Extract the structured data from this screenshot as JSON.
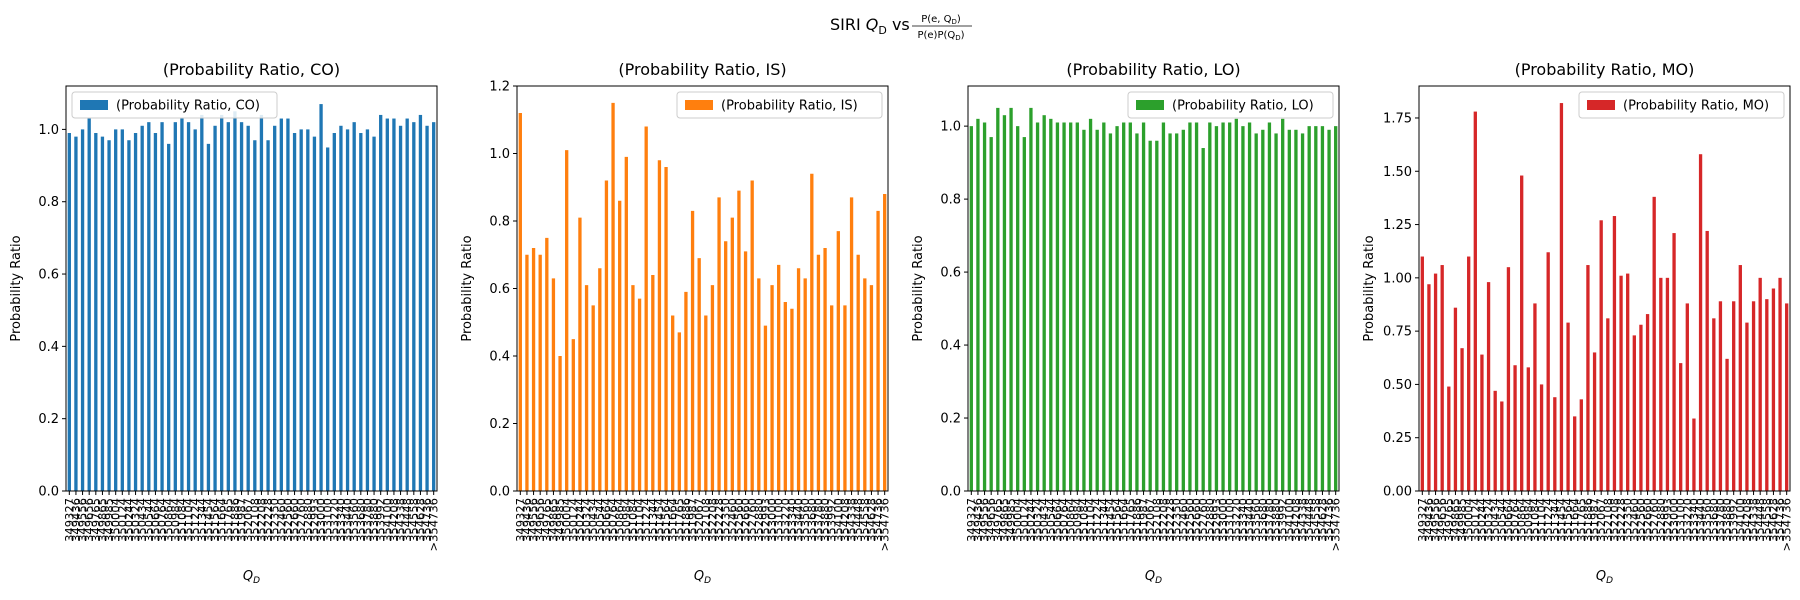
{
  "figure": {
    "suptitle_prefix": "SIRI ",
    "suptitle_var": "Q",
    "suptitle_sub": "D",
    "suptitle_vs": " vs ",
    "frac_num": "P(e, Q",
    "frac_num_sub": "D",
    "frac_num_close": ")",
    "frac_den": "P(e)P(Q",
    "frac_den_sub": "D",
    "frac_den_close": ")"
  },
  "chart_data": [
    {
      "type": "bar",
      "title": "(Probability Ratio, CO)",
      "legend_label": "(Probability Ratio, CO)",
      "legend_position": "upper-left",
      "color": "#1f77b4",
      "xlabel_var": "Q",
      "xlabel_sub": "D",
      "ylabel": "Probability Ratio",
      "ylim": [
        0,
        1.12
      ],
      "yticks": [
        0.0,
        0.2,
        0.4,
        0.6,
        0.8,
        1.0
      ],
      "ytick_labels": [
        "0.0",
        "0.2",
        "0.4",
        "0.6",
        "0.8",
        "1.0"
      ],
      "categories": [
        "349327",
        "349436",
        "349556",
        "349656",
        "349765",
        "349865",
        "349985",
        "350004",
        "350124",
        "350244",
        "350324",
        "350434",
        "350544",
        "350664",
        "350764",
        "350864",
        "350984",
        "351084",
        "351104",
        "351224",
        "351344",
        "351454",
        "351564",
        "351664",
        "351765",
        "351886",
        "351987",
        "352067",
        "352108",
        "352208",
        "352228",
        "352350",
        "352460",
        "352560",
        "352660",
        "352760",
        "352880",
        "352993",
        "353000",
        "353100",
        "353220",
        "353340",
        "353440",
        "353560",
        "353680",
        "353780",
        "353880",
        "353992",
        "354100",
        "354208",
        "354338",
        "354448",
        "354558",
        "354628",
        "354736",
        ">354736"
      ],
      "tick_labels": [
        "349327",
        "349436",
        "349556",
        "349656",
        "349765",
        "349865",
        "349985",
        "350004",
        "350124",
        "350244",
        "350324",
        "350434",
        "350544",
        "350664",
        "350764",
        "350864",
        "350984",
        "351084",
        "351104",
        "351224",
        "351344",
        "351454",
        "351564",
        "351664",
        "351765",
        "351886",
        "351987",
        "352067",
        "352108",
        "352208",
        "352228",
        "352350",
        "352460",
        "352560",
        "352660",
        "352760",
        "352880",
        "352993",
        "353000",
        "353100",
        "353220",
        "353340",
        "353440",
        "353560",
        "353680",
        "353780",
        "353880",
        "353992",
        "354100",
        "354208",
        "354338",
        "354448",
        "354558",
        "354628",
        "354736",
        ">354736"
      ],
      "values": [
        0.99,
        0.98,
        1.0,
        1.03,
        0.99,
        0.98,
        0.97,
        1.0,
        1.0,
        0.97,
        0.99,
        1.01,
        1.02,
        0.99,
        1.02,
        0.96,
        1.02,
        1.03,
        1.02,
        1.0,
        1.04,
        0.96,
        1.01,
        1.04,
        1.02,
        1.05,
        1.02,
        1.01,
        0.97,
        1.04,
        0.97,
        1.01,
        1.03,
        1.03,
        0.99,
        1.0,
        1.0,
        0.98,
        1.07,
        0.95,
        0.99,
        1.01,
        1.0,
        1.02,
        0.99,
        1.0,
        0.98,
        1.04,
        1.03,
        1.03,
        1.01,
        1.03,
        1.02,
        1.04,
        1.01,
        1.02
      ]
    },
    {
      "type": "bar",
      "title": "(Probability Ratio, IS)",
      "legend_label": "(Probability Ratio, IS)",
      "legend_position": "upper-right",
      "color": "#ff7f0e",
      "xlabel_var": "Q",
      "xlabel_sub": "D",
      "ylabel": "Probability Ratio",
      "ylim": [
        0,
        1.2
      ],
      "yticks": [
        0.0,
        0.2,
        0.4,
        0.6,
        0.8,
        1.0,
        1.2
      ],
      "ytick_labels": [
        "0.0",
        "0.2",
        "0.4",
        "0.6",
        "0.8",
        "1.0",
        "1.2"
      ],
      "categories": [
        "349327",
        "349436",
        "349556",
        "349656",
        "349765",
        "349865",
        "349985",
        "350004",
        "350124",
        "350244",
        "350324",
        "350434",
        "350544",
        "350664",
        "350764",
        "350864",
        "350984",
        "351084",
        "351104",
        "351224",
        "351344",
        "351454",
        "351564",
        "351664",
        "351765",
        "351886",
        "351987",
        "352067",
        "352108",
        "352208",
        "352228",
        "352350",
        "352460",
        "352560",
        "352660",
        "352760",
        "352880",
        "352993",
        "353000",
        "353100",
        "353220",
        "353340",
        "353440",
        "353560",
        "353680",
        "353780",
        "353880",
        "353992",
        "354100",
        "354208",
        "354338",
        "354448",
        "354558",
        "354628",
        "354736",
        ">354736"
      ],
      "tick_labels": [
        "349327",
        "349436",
        "349556",
        "349656",
        "349765",
        "349865",
        "349985",
        "350004",
        "350124",
        "350244",
        "350324",
        "350434",
        "350544",
        "350664",
        "350764",
        "350864",
        "350984",
        "351084",
        "351104",
        "351224",
        "351344",
        "351454",
        "351564",
        "351664",
        "351765",
        "351886",
        "351987",
        "352067",
        "352108",
        "352208",
        "352228",
        "352350",
        "352460",
        "352560",
        "352660",
        "352760",
        "352880",
        "352993",
        "353000",
        "353100",
        "353220",
        "353340",
        "353440",
        "353560",
        "353680",
        "353780",
        "353880",
        "353992",
        "354100",
        "354208",
        "354338",
        "354448",
        "354558",
        "354628",
        "354736",
        ">354736"
      ],
      "values": [
        1.12,
        0.7,
        0.72,
        0.7,
        0.75,
        0.63,
        0.4,
        1.01,
        0.45,
        0.81,
        0.61,
        0.55,
        0.66,
        0.92,
        1.15,
        0.86,
        0.99,
        0.61,
        0.57,
        1.08,
        0.64,
        0.98,
        0.96,
        0.52,
        0.47,
        0.59,
        0.83,
        0.69,
        0.52,
        0.61,
        0.87,
        0.74,
        0.81,
        0.89,
        0.71,
        0.92,
        0.63,
        0.49,
        0.61,
        0.67,
        0.56,
        0.54,
        0.66,
        0.63,
        0.94,
        0.7,
        0.72,
        0.55,
        0.77,
        0.55,
        0.87,
        0.7,
        0.63,
        0.61,
        0.83,
        0.88
      ]
    },
    {
      "type": "bar",
      "title": "(Probability Ratio, LO)",
      "legend_label": "(Probability Ratio, LO)",
      "legend_position": "upper-right",
      "color": "#2ca02c",
      "xlabel_var": "Q",
      "xlabel_sub": "D",
      "ylabel": "Probability Ratio",
      "ylim": [
        0,
        1.11
      ],
      "yticks": [
        0.0,
        0.2,
        0.4,
        0.6,
        0.8,
        1.0
      ],
      "ytick_labels": [
        "0.0",
        "0.2",
        "0.4",
        "0.6",
        "0.8",
        "1.0"
      ],
      "categories": [
        "349327",
        "349436",
        "349556",
        "349656",
        "349765",
        "349865",
        "349985",
        "350004",
        "350124",
        "350244",
        "350324",
        "350434",
        "350544",
        "350664",
        "350764",
        "350864",
        "350984",
        "351084",
        "351104",
        "351224",
        "351344",
        "351454",
        "351564",
        "351664",
        "351765",
        "351886",
        "351987",
        "352067",
        "352108",
        "352208",
        "352228",
        "352350",
        "352460",
        "352560",
        "352660",
        "352760",
        "352880",
        "352993",
        "353000",
        "353100",
        "353220",
        "353340",
        "353440",
        "353560",
        "353680",
        "353780",
        "353880",
        "353992",
        "354100",
        "354208",
        "354338",
        "354448",
        "354558",
        "354628",
        "354736",
        ">354736"
      ],
      "tick_labels": [
        "349327",
        "349436",
        "349556",
        "349656",
        "349765",
        "349865",
        "349985",
        "350004",
        "350124",
        "350244",
        "350324",
        "350434",
        "350544",
        "350664",
        "350764",
        "350864",
        "350984",
        "351084",
        "351104",
        "351224",
        "351344",
        "351454",
        "351564",
        "351664",
        "351765",
        "351886",
        "351987",
        "352067",
        "352108",
        "352208",
        "352228",
        "352350",
        "352460",
        "352560",
        "352660",
        "352760",
        "352880",
        "352993",
        "353000",
        "353100",
        "353220",
        "353340",
        "353440",
        "353560",
        "353680",
        "353780",
        "353880",
        "353992",
        "354100",
        "354208",
        "354338",
        "354448",
        "354558",
        "354628",
        "354736",
        ">354736"
      ],
      "values": [
        1.0,
        1.02,
        1.01,
        0.97,
        1.05,
        1.03,
        1.05,
        1.0,
        0.97,
        1.05,
        1.01,
        1.03,
        1.02,
        1.01,
        1.01,
        1.01,
        1.01,
        0.99,
        1.02,
        0.99,
        1.01,
        0.98,
        1.0,
        1.01,
        1.01,
        0.98,
        1.01,
        0.96,
        0.96,
        1.01,
        0.98,
        0.98,
        0.99,
        1.01,
        1.01,
        0.94,
        1.01,
        1.0,
        1.01,
        1.01,
        1.02,
        1.0,
        1.01,
        0.98,
        0.99,
        1.01,
        0.98,
        1.02,
        0.99,
        0.99,
        0.98,
        1.0,
        1.0,
        1.0,
        0.99,
        1.0
      ]
    },
    {
      "type": "bar",
      "title": "(Probability Ratio, MO)",
      "legend_label": "(Probability Ratio, MO)",
      "legend_position": "upper-right",
      "color": "#d62728",
      "xlabel_var": "Q",
      "xlabel_sub": "D",
      "ylabel": "Probability Ratio",
      "ylim": [
        0,
        1.9
      ],
      "yticks": [
        0.0,
        0.25,
        0.5,
        0.75,
        1.0,
        1.25,
        1.5,
        1.75
      ],
      "ytick_labels": [
        "0.00",
        "0.25",
        "0.50",
        "0.75",
        "1.00",
        "1.25",
        "1.50",
        "1.75"
      ],
      "categories": [
        "349327",
        "349436",
        "349556",
        "349656",
        "349765",
        "349865",
        "349985",
        "350004",
        "350124",
        "350244",
        "350324",
        "350434",
        "350544",
        "350664",
        "350764",
        "350864",
        "350984",
        "351084",
        "351104",
        "351224",
        "351344",
        "351454",
        "351564",
        "351664",
        "351765",
        "351886",
        "351987",
        "352067",
        "352108",
        "352208",
        "352228",
        "352350",
        "352460",
        "352560",
        "352660",
        "352760",
        "352880",
        "352993",
        "353000",
        "353100",
        "353220",
        "353340",
        "353440",
        "353560",
        "353680",
        "353780",
        "353880",
        "353992",
        "354100",
        "354208",
        "354338",
        "354448",
        "354558",
        "354628",
        "354736",
        ">354736"
      ],
      "tick_labels": [
        "349327",
        "349436",
        "349556",
        "349656",
        "349765",
        "349865",
        "349985",
        "350004",
        "350124",
        "350244",
        "350324",
        "350434",
        "350544",
        "350664",
        "350764",
        "350864",
        "350984",
        "351084",
        "351104",
        "351224",
        "351344",
        "351454",
        "351564",
        "351664",
        "351765",
        "351886",
        "351987",
        "352067",
        "352108",
        "352208",
        "352228",
        "352350",
        "352460",
        "352560",
        "352660",
        "352760",
        "352880",
        "352993",
        "353000",
        "353100",
        "353220",
        "353340",
        "353440",
        "353560",
        "353680",
        "353780",
        "353880",
        "353992",
        "354100",
        "354208",
        "354338",
        "354448",
        "354558",
        "354628",
        "354736",
        ">354736"
      ],
      "values": [
        1.1,
        0.97,
        1.02,
        1.06,
        0.49,
        0.86,
        0.67,
        1.1,
        1.78,
        0.64,
        0.98,
        0.47,
        0.42,
        1.05,
        0.59,
        1.48,
        0.58,
        0.88,
        0.5,
        1.12,
        0.44,
        1.82,
        0.79,
        0.35,
        0.43,
        1.06,
        0.65,
        1.27,
        0.81,
        1.29,
        1.01,
        1.02,
        0.73,
        0.78,
        0.83,
        1.38,
        1.0,
        1.0,
        1.21,
        0.6,
        0.88,
        0.34,
        1.58,
        1.22,
        0.81,
        0.89,
        0.62,
        0.89,
        1.06,
        0.79,
        0.89,
        1.0,
        0.9,
        0.95,
        1.0,
        0.88
      ]
    }
  ]
}
